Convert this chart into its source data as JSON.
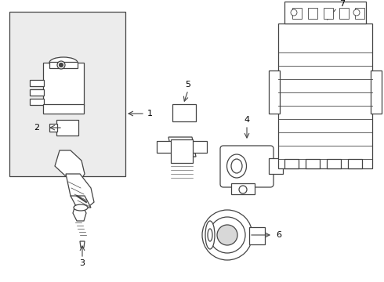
{
  "bg_color": "#ffffff",
  "line_color": "#444444",
  "label_color": "#000000",
  "box_bg": "#ebebeb",
  "fig_width": 4.9,
  "fig_height": 3.6,
  "dpi": 100,
  "xlim": [
    0,
    490
  ],
  "ylim": [
    0,
    360
  ]
}
